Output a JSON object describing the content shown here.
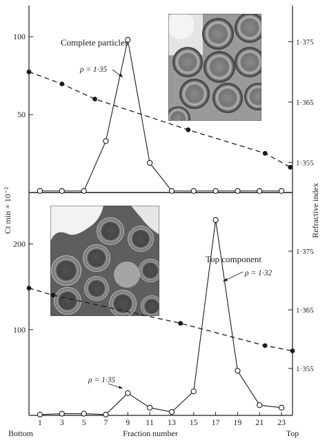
{
  "chart_data": [
    {
      "type": "line",
      "annotation": "Complete particles",
      "label_rho": "ρ = 1·35",
      "ylim_left": [
        0,
        120
      ],
      "yticks_left": [
        50,
        100
      ],
      "ylim_right": [
        1.35,
        1.381
      ],
      "yticks_right": [
        1.355,
        1.365,
        1.375
      ],
      "xlim": [
        0,
        24
      ],
      "series": [
        {
          "kind": "counts",
          "x": [
            1,
            3,
            5,
            7,
            9,
            11,
            13,
            15,
            17,
            19,
            21,
            23
          ],
          "y": [
            1,
            1,
            1,
            33,
            98,
            19,
            1,
            1,
            1,
            1,
            1,
            1
          ]
        },
        {
          "kind": "refractive_index",
          "x": [
            0,
            3,
            6,
            14.5,
            21.5,
            23.8
          ],
          "y": [
            1.37,
            1.368,
            1.3655,
            1.3604,
            1.3565,
            1.3542
          ]
        }
      ],
      "peak": {
        "x": 9,
        "y": 98
      }
    },
    {
      "type": "line",
      "annotation": "Top component",
      "label_rho_1": "ρ = 1·32",
      "label_rho_2": "ρ = 1·35",
      "ylim_left": [
        0,
        260
      ],
      "yticks_left": [
        100,
        200
      ],
      "ylim_right": [
        1.347,
        1.385
      ],
      "yticks_right": [
        1.355,
        1.365,
        1.375
      ],
      "xlim": [
        0,
        24
      ],
      "series": [
        {
          "kind": "counts",
          "x": [
            1,
            3,
            5,
            7,
            9,
            11,
            13,
            15,
            17,
            19,
            21,
            23
          ],
          "y": [
            1,
            2,
            2,
            1,
            26,
            9,
            4,
            28,
            228,
            52,
            12,
            9
          ]
        },
        {
          "kind": "refractive_index",
          "x": [
            0,
            2.2,
            13.8,
            21.5,
            24
          ],
          "y": [
            1.3687,
            1.3675,
            1.3627,
            1.3589,
            1.358
          ]
        }
      ],
      "peak": {
        "x": 17,
        "y": 228
      },
      "minor": {
        "x": 9,
        "y": 26
      }
    }
  ],
  "axes": {
    "ylabel_left": "Ct min × 10⁻²",
    "ylabel_right": "Refractive index",
    "xlabel": "Fraction number",
    "xlabel_left_end": "Bottom",
    "xlabel_right_end": "Top",
    "xtick_labels": [
      "1",
      "3",
      "5",
      "7",
      "9",
      "11",
      "13",
      "15",
      "17",
      "19",
      "21",
      "23"
    ]
  }
}
